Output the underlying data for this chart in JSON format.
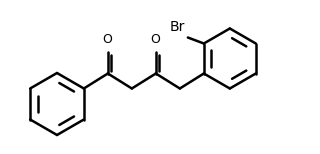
{
  "bg_color": "#ffffff",
  "line_color": "#000000",
  "line_width": 1.8,
  "br_label": "Br",
  "o_label1": "O",
  "o_label2": "O",
  "font_size": 9,
  "figsize": [
    3.2,
    1.54
  ],
  "dpi": 100
}
